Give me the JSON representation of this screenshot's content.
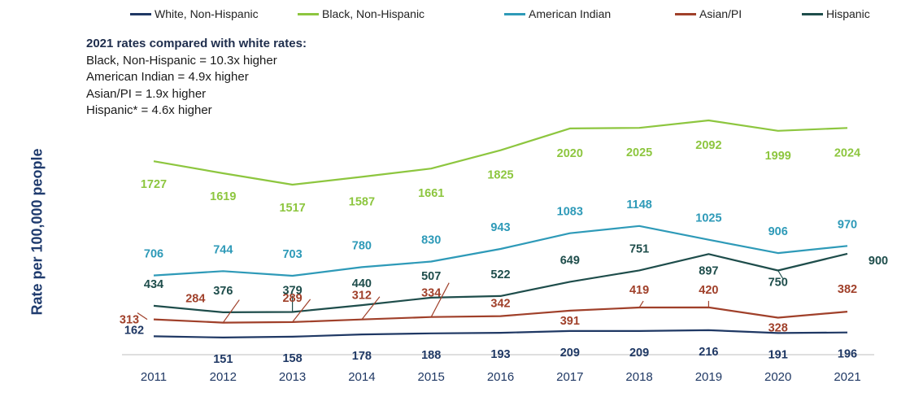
{
  "chart_data": {
    "type": "line",
    "title": "",
    "xlabel": "",
    "ylabel": "Rate per 100,000 people",
    "categories": [
      "2011",
      "2012",
      "2013",
      "2014",
      "2015",
      "2016",
      "2017",
      "2018",
      "2019",
      "2020",
      "2021"
    ],
    "ylim": [
      0,
      2200
    ],
    "grid": false,
    "legend": "top",
    "series": [
      {
        "name": "White, Non-Hispanic",
        "color": "#1f3864",
        "values": [
          162,
          151,
          158,
          178,
          188,
          193,
          209,
          209,
          216,
          191,
          196
        ]
      },
      {
        "name": "Black, Non-Hispanic",
        "color": "#8dc63f",
        "values": [
          1727,
          1619,
          1517,
          1587,
          1661,
          1825,
          2020,
          2025,
          2092,
          1999,
          2024
        ]
      },
      {
        "name": "American Indian",
        "color": "#2e9ab8",
        "values": [
          706,
          744,
          703,
          780,
          830,
          943,
          1083,
          1148,
          1025,
          906,
          970
        ]
      },
      {
        "name": "Asian/PI",
        "color": "#a0402a",
        "values": [
          313,
          284,
          289,
          312,
          334,
          342,
          391,
          419,
          420,
          328,
          382
        ]
      },
      {
        "name": "Hispanic",
        "color": "#1e4d4b",
        "values": [
          434,
          376,
          379,
          440,
          507,
          522,
          649,
          751,
          897,
          750,
          900
        ]
      }
    ],
    "annotation": {
      "title": "2021 rates compared with white rates:",
      "lines": [
        "Black, Non-Hispanic = 10.3x higher",
        "American Indian = 4.9x higher",
        "Asian/PI = 1.9x higher",
        "Hispanic* = 4.6x higher"
      ]
    }
  }
}
